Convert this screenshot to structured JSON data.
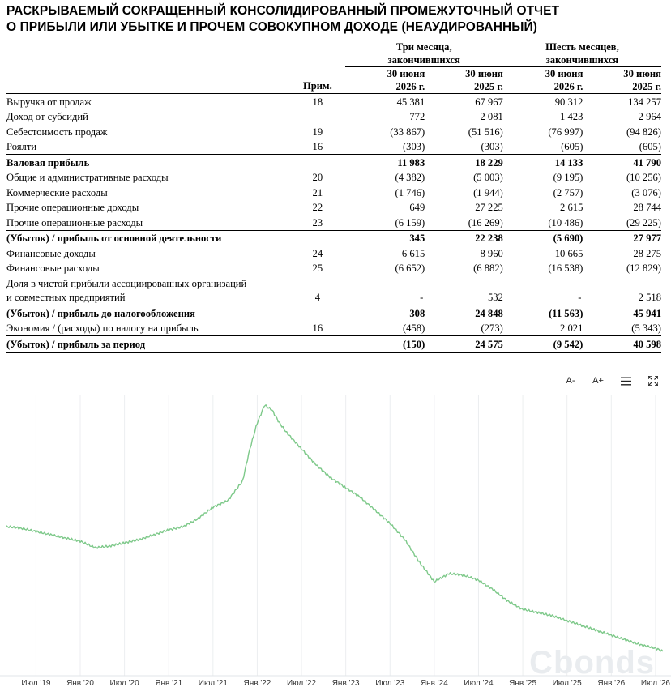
{
  "report": {
    "title_line1": "РАСКРЫВАЕМЫЙ СОКРАЩЕННЫЙ КОНСОЛИДИРОВАННЫЙ ПРОМЕЖУТОЧНЫЙ ОТЧЕТ",
    "title_line2": "О ПРИБЫЛИ ИЛИ УБЫТКЕ И ПРОЧЕМ СОВОКУПНОМ ДОХОДЕ (НЕАУДИРОВАННЫЙ)",
    "group_three_line1": "Три месяца,",
    "group_three_line2": "закончившихся",
    "group_six_line1": "Шесть месяцев,",
    "group_six_line2": "закончившихся",
    "note_header": "Прим.",
    "date_cols": [
      {
        "line1": "30 июня",
        "line2": "2026 г."
      },
      {
        "line1": "30 июня",
        "line2": "2025 г."
      },
      {
        "line1": "30 июня",
        "line2": "2026 г."
      },
      {
        "line1": "30 июня",
        "line2": "2025 г."
      }
    ],
    "rows": [
      {
        "label": "Выручка от продаж",
        "note": "18",
        "v": [
          "45 381",
          "67 967",
          "90 312",
          "134 257"
        ]
      },
      {
        "label": "Доход от субсидий",
        "note": "",
        "v": [
          "772",
          "2 081",
          "1 423",
          "2 964"
        ]
      },
      {
        "label": "Себестоимость продаж",
        "note": "19",
        "v": [
          "(33 867)",
          "(51 516)",
          "(76 997)",
          "(94 826)"
        ]
      },
      {
        "label": "Роялти",
        "note": "16",
        "v": [
          "(303)",
          "(303)",
          "(605)",
          "(605)"
        ]
      },
      {
        "label": "Валовая прибыль",
        "note": "",
        "v": [
          "11 983",
          "18 229",
          "14 133",
          "41 790"
        ]
      },
      {
        "label": "Общие и административные расходы",
        "note": "20",
        "v": [
          "(4 382)",
          "(5 003)",
          "(9 195)",
          "(10 256)"
        ]
      },
      {
        "label": "Коммерческие расходы",
        "note": "21",
        "v": [
          "(1 746)",
          "(1 944)",
          "(2 757)",
          "(3 076)"
        ]
      },
      {
        "label": "Прочие операционные доходы",
        "note": "22",
        "v": [
          "649",
          "27 225",
          "2 615",
          "28 744"
        ]
      },
      {
        "label": "Прочие операционные расходы",
        "note": "23",
        "v": [
          "(6 159)",
          "(16 269)",
          "(10 486)",
          "(29 225)"
        ]
      },
      {
        "label": "(Убыток) / прибыль от основной деятельности",
        "note": "",
        "v": [
          "345",
          "22 238",
          "(5 690)",
          "27 977"
        ]
      },
      {
        "label": "Финансовые доходы",
        "note": "24",
        "v": [
          "6 615",
          "8 960",
          "10 665",
          "28 275"
        ]
      },
      {
        "label": "Финансовые расходы",
        "note": "25",
        "v": [
          "(6 652)",
          "(6 882)",
          "(16 538)",
          "(12 829)"
        ]
      },
      {
        "label_line1": "Доля в чистой прибыли ассоциированных организаций",
        "label_line2": "и совместных предприятий",
        "note": "4",
        "v": [
          "-",
          "532",
          "-",
          "2 518"
        ]
      },
      {
        "label": "(Убыток) / прибыль до налогообложения",
        "note": "",
        "v": [
          "308",
          "24 848",
          "(11 563)",
          "45 941"
        ]
      },
      {
        "label": "Экономия / (расходы) по налогу на прибыль",
        "note": "16",
        "v": [
          "(458)",
          "(273)",
          "2 021",
          "(5 343)"
        ]
      },
      {
        "label": "(Убыток) / прибыль за период",
        "note": "",
        "v": [
          "(150)",
          "24 575",
          "(9 542)",
          "40 598"
        ]
      }
    ]
  },
  "toolbar": {
    "font_smaller": "A-",
    "font_larger": "A+",
    "menu_icon": "hamburger-menu-icon",
    "fullscreen_icon": "fullscreen-icon"
  },
  "watermark": "Cbonds",
  "chart_data": {
    "type": "line",
    "title": "",
    "xlabel": "",
    "ylabel": "",
    "x_tick_labels": [
      "Июл '19",
      "Янв '20",
      "Июл '20",
      "Янв '21",
      "Июл '21",
      "Янв '22",
      "Июл '22",
      "Янв '23",
      "Июл '23",
      "Янв '24",
      "Июл '24",
      "Янв '25",
      "Июл '25",
      "Янв '26",
      "Июл '26"
    ],
    "y_axis_labels_shown": false,
    "grid": "vertical",
    "color": "#7ec98a",
    "series": [
      {
        "x": [
          "2019-03",
          "2019-05",
          "2019-07",
          "2019-09",
          "2019-11",
          "2020-01",
          "2020-03",
          "2020-05",
          "2020-07",
          "2020-09",
          "2020-11",
          "2021-01",
          "2021-03",
          "2021-05",
          "2021-07",
          "2021-09",
          "2021-11",
          "2021-12",
          "2022-01",
          "2022-02",
          "2022-03",
          "2022-04",
          "2022-05",
          "2022-07",
          "2022-09",
          "2022-11",
          "2023-01",
          "2023-03",
          "2023-05",
          "2023-07",
          "2023-09",
          "2023-11",
          "2024-01",
          "2024-03",
          "2024-05",
          "2024-07",
          "2024-09",
          "2024-11",
          "2025-01",
          "2025-03",
          "2025-05",
          "2025-07",
          "2025-09",
          "2025-11",
          "2026-01",
          "2026-03",
          "2026-05",
          "2026-07",
          "2026-08"
        ],
        "values": [
          38,
          37.5,
          36.5,
          35.5,
          34.5,
          33.5,
          31.5,
          32,
          33,
          34,
          35.5,
          37,
          38,
          40.5,
          44,
          46,
          52,
          62,
          70,
          75.5,
          74,
          70,
          67,
          62,
          57,
          53,
          50,
          47,
          43,
          39,
          34,
          27,
          21,
          23.5,
          23,
          21.5,
          18.5,
          15,
          12.5,
          11.5,
          10.5,
          9,
          7.5,
          6,
          4.5,
          3,
          1.5,
          0.5,
          -0.5
        ]
      }
    ]
  }
}
